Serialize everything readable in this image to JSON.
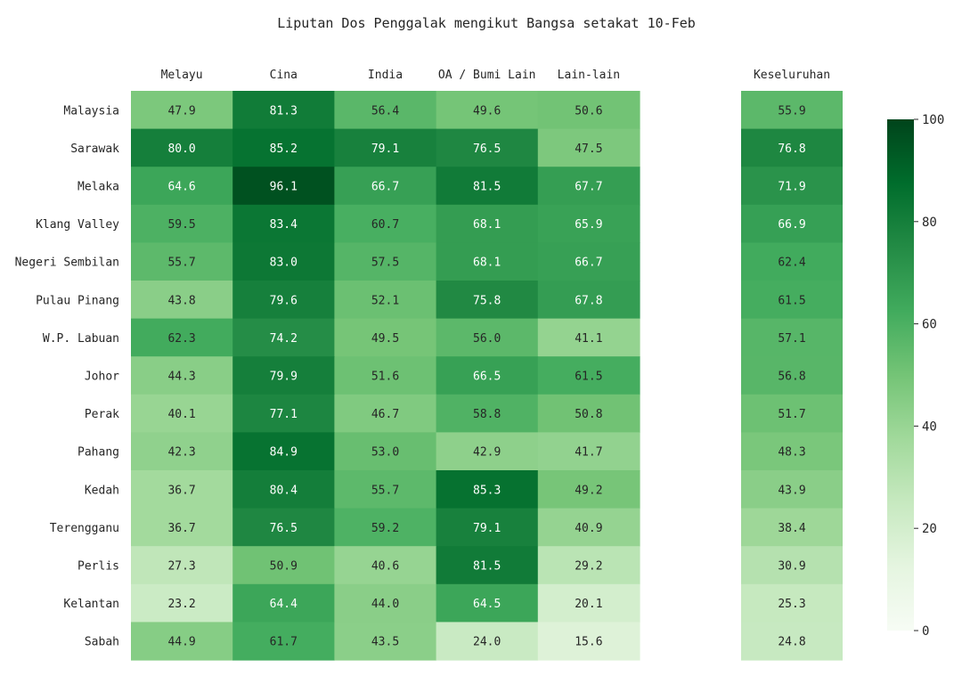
{
  "chart_data": {
    "type": "heatmap",
    "title": "Liputan Dos Penggalak mengikut Bangsa setakat 10-Feb",
    "columns": [
      "Melayu",
      "Cina",
      "India",
      "OA / Bumi Lain",
      "Lain-lain"
    ],
    "overall_column": "Keseluruhan",
    "rows": [
      "Malaysia",
      "Sarawak",
      "Melaka",
      "Klang Valley",
      "Negeri Sembilan",
      "Pulau Pinang",
      "W.P. Labuan",
      "Johor",
      "Perak",
      "Pahang",
      "Kedah",
      "Terengganu",
      "Perlis",
      "Kelantan",
      "Sabah"
    ],
    "values": [
      [
        47.9,
        81.3,
        56.4,
        49.6,
        50.6
      ],
      [
        80.0,
        85.2,
        79.1,
        76.5,
        47.5
      ],
      [
        64.6,
        96.1,
        66.7,
        81.5,
        67.7
      ],
      [
        59.5,
        83.4,
        60.7,
        68.1,
        65.9
      ],
      [
        55.7,
        83.0,
        57.5,
        68.1,
        66.7
      ],
      [
        43.8,
        79.6,
        52.1,
        75.8,
        67.8
      ],
      [
        62.3,
        74.2,
        49.5,
        56.0,
        41.1
      ],
      [
        44.3,
        79.9,
        51.6,
        66.5,
        61.5
      ],
      [
        40.1,
        77.1,
        46.7,
        58.8,
        50.8
      ],
      [
        42.3,
        84.9,
        53.0,
        42.9,
        41.7
      ],
      [
        36.7,
        80.4,
        55.7,
        85.3,
        49.2
      ],
      [
        36.7,
        76.5,
        59.2,
        79.1,
        40.9
      ],
      [
        27.3,
        50.9,
        40.6,
        81.5,
        29.2
      ],
      [
        23.2,
        64.4,
        44.0,
        64.5,
        20.1
      ],
      [
        44.9,
        61.7,
        43.5,
        24.0,
        15.6
      ]
    ],
    "overall_values": [
      55.9,
      76.8,
      71.9,
      66.9,
      62.4,
      61.5,
      57.1,
      56.8,
      51.7,
      48.3,
      43.9,
      38.4,
      30.9,
      25.3,
      24.8
    ],
    "value_format": "0.1f",
    "color_scale": {
      "name": "Greens",
      "min": 0,
      "max": 100,
      "ticks": [
        0,
        20,
        40,
        60,
        80,
        100
      ]
    }
  }
}
